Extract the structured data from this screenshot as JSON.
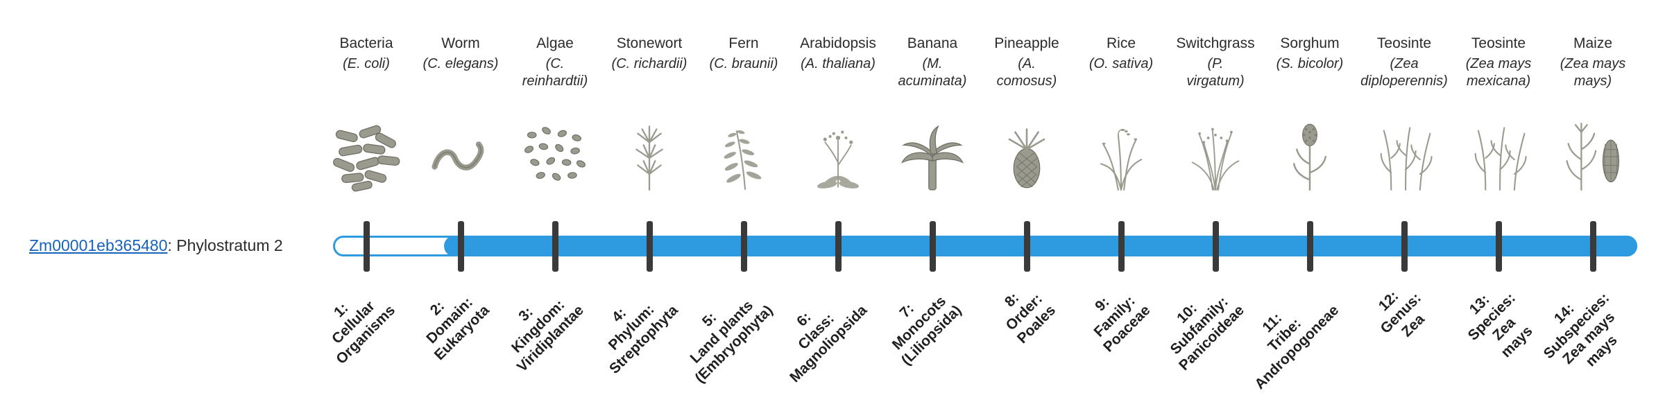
{
  "gene": {
    "id": "Zm00001eb365480",
    "suffix": ": Phylostratum 2"
  },
  "bar": {
    "phylostratum": 2,
    "total_strata": 14
  },
  "colors": {
    "bar": "#2E9BE0",
    "tick": "#3A3A3A",
    "link": "#1663BE",
    "text": "#2B2B2B",
    "sketch": "#9A9A8E"
  },
  "taxa": [
    {
      "name": "Bacteria",
      "sci": "(E. coli)",
      "icon": "bacteria-icon",
      "stratum": "1:\nCellular\nOrganisms"
    },
    {
      "name": "Worm",
      "sci": "(C. elegans)",
      "icon": "worm-icon",
      "stratum": "2:\nDomain:\nEukaryota"
    },
    {
      "name": "Algae",
      "sci": "(C.\nreinhardtii)",
      "icon": "algae-icon",
      "stratum": "3:\nKingdom:\nViridiplantae"
    },
    {
      "name": "Stonewort",
      "sci": "(C. richardii)",
      "icon": "stonewort-icon",
      "stratum": "4:\nPhylum:\nStreptophyta"
    },
    {
      "name": "Fern",
      "sci": "(C. braunii)",
      "icon": "fern-icon",
      "stratum": "5:\nLand plants\n(Embryophyta)"
    },
    {
      "name": "Arabidopsis",
      "sci": "(A. thaliana)",
      "icon": "arabidopsis-icon",
      "stratum": "6:\nClass:\nMagnoliopsida"
    },
    {
      "name": "Banana",
      "sci": "(M.\nacuminata)",
      "icon": "banana-icon",
      "stratum": "7:\nMonocots\n(Liliopsida)"
    },
    {
      "name": "Pineapple",
      "sci": "(A.\ncomosus)",
      "icon": "pineapple-icon",
      "stratum": "8:\nOrder:\nPoales"
    },
    {
      "name": "Rice",
      "sci": "(O. sativa)",
      "icon": "rice-icon",
      "stratum": "9:\nFamily:\nPoaceae"
    },
    {
      "name": "Switchgrass",
      "sci": "(P.\nvirgatum)",
      "icon": "switchgrass-icon",
      "stratum": "10:\nSubfamily:\nPanicoideae"
    },
    {
      "name": "Sorghum",
      "sci": "(S. bicolor)",
      "icon": "sorghum-icon",
      "stratum": "11:\nTribe:\nAndropogoneae"
    },
    {
      "name": "Teosinte",
      "sci": "(Zea\ndiploperennis)",
      "icon": "teosinte-icon",
      "stratum": "12:\nGenus:\nZea"
    },
    {
      "name": "Teosinte",
      "sci": "(Zea mays\nmexicana)",
      "icon": "teosinte-icon",
      "stratum": "13:\nSpecies:\nZea\nmays"
    },
    {
      "name": "Maize",
      "sci": "(Zea mays\nmays)",
      "icon": "maize-icon",
      "stratum": "14:\nSubspecies:\nZea mays\nmays"
    }
  ]
}
